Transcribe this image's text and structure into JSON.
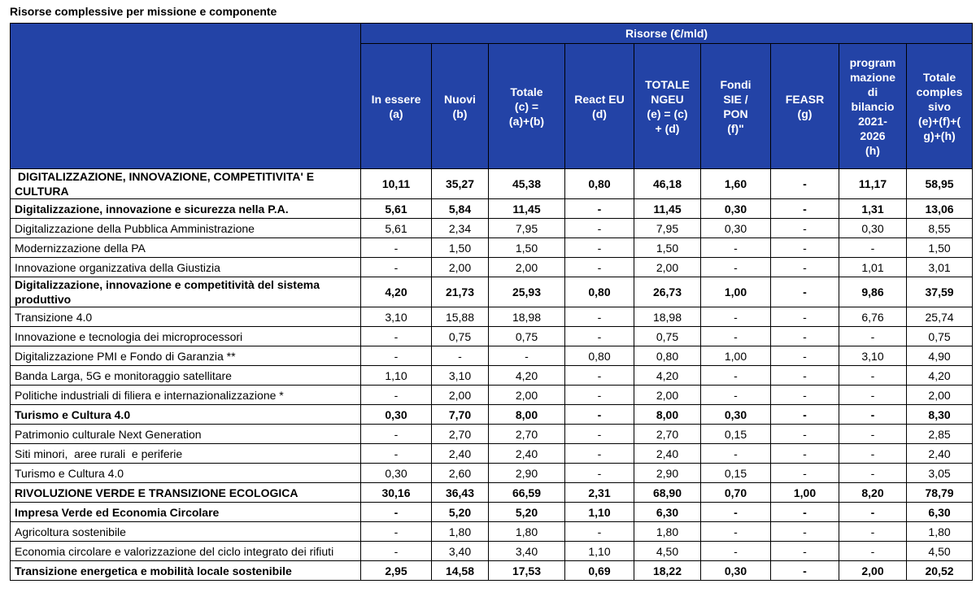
{
  "title": "Risorse complessive per missione e componente",
  "table": {
    "group_header": "Risorse (€/mld)",
    "columns": [
      [
        "In essere",
        "(a)"
      ],
      [
        "Nuovi",
        "(b)"
      ],
      [
        "Totale",
        "(c) =",
        "(a)+(b)"
      ],
      [
        "React EU",
        "(d)"
      ],
      [
        "TOTALE",
        "NGEU",
        "(e) = (c)",
        "+ (d)"
      ],
      [
        "Fondi",
        "SIE /",
        "PON",
        "(f)\""
      ],
      [
        "FEASR",
        "(g)"
      ],
      [
        "program",
        "mazione",
        "di",
        "bilancio",
        "2021-",
        "2026",
        "(h)"
      ],
      [
        "Totale",
        "comples",
        "sivo",
        "(e)+(f)+(",
        "g)+(h)"
      ]
    ],
    "rows": [
      {
        "label": " DIGITALIZZAZIONE, INNOVAZIONE, COMPETITIVITA' E CULTURA",
        "bold": true,
        "values": [
          "10,11",
          "35,27",
          "45,38",
          "0,80",
          "46,18",
          "1,60",
          "-",
          "11,17",
          "58,95"
        ]
      },
      {
        "label": "Digitalizzazione, innovazione e sicurezza nella P.A.",
        "bold": true,
        "values": [
          "5,61",
          "5,84",
          "11,45",
          "-",
          "11,45",
          "0,30",
          "-",
          "1,31",
          "13,06"
        ]
      },
      {
        "label": "Digitalizzazione della Pubblica Amministrazione",
        "bold": false,
        "values": [
          "5,61",
          "2,34",
          "7,95",
          "-",
          "7,95",
          "0,30",
          "-",
          "0,30",
          "8,55"
        ]
      },
      {
        "label": "Modernizzazione della PA",
        "bold": false,
        "values": [
          "-",
          "1,50",
          "1,50",
          "-",
          "1,50",
          "-",
          "-",
          "-",
          "1,50"
        ]
      },
      {
        "label": "Innovazione organizzativa della Giustizia",
        "bold": false,
        "values": [
          "-",
          "2,00",
          "2,00",
          "-",
          "2,00",
          "-",
          "-",
          "1,01",
          "3,01"
        ]
      },
      {
        "label": "Digitalizzazione, innovazione e competitività del sistema produttivo",
        "bold": true,
        "values": [
          "4,20",
          "21,73",
          "25,93",
          "0,80",
          "26,73",
          "1,00",
          "-",
          "9,86",
          "37,59"
        ]
      },
      {
        "label": "Transizione 4.0",
        "bold": false,
        "values": [
          "3,10",
          "15,88",
          "18,98",
          "-",
          "18,98",
          "-",
          "-",
          "6,76",
          "25,74"
        ]
      },
      {
        "label": "Innovazione e tecnologia dei microprocessori",
        "bold": false,
        "values": [
          "-",
          "0,75",
          "0,75",
          "-",
          "0,75",
          "-",
          "-",
          "-",
          "0,75"
        ]
      },
      {
        "label": "Digitalizzazione PMI e Fondo di Garanzia **",
        "bold": false,
        "values": [
          "-",
          "-",
          "-",
          "0,80",
          "0,80",
          "1,00",
          "-",
          "3,10",
          "4,90"
        ]
      },
      {
        "label": "Banda Larga, 5G e monitoraggio satellitare",
        "bold": false,
        "values": [
          "1,10",
          "3,10",
          "4,20",
          "-",
          "4,20",
          "-",
          "-",
          "-",
          "4,20"
        ]
      },
      {
        "label": "Politiche industriali di filiera e internazionalizzazione *",
        "bold": false,
        "values": [
          "-",
          "2,00",
          "2,00",
          "-",
          "2,00",
          "-",
          "-",
          "-",
          "2,00"
        ]
      },
      {
        "label": "Turismo e Cultura 4.0",
        "bold": true,
        "values": [
          "0,30",
          "7,70",
          "8,00",
          "-",
          "8,00",
          "0,30",
          "-",
          "-",
          "8,30"
        ]
      },
      {
        "label": "Patrimonio culturale Next Generation",
        "bold": false,
        "values": [
          "-",
          "2,70",
          "2,70",
          "-",
          "2,70",
          "0,15",
          "-",
          "-",
          "2,85"
        ]
      },
      {
        "label": "Siti minori,  aree rurali  e periferie",
        "bold": false,
        "values": [
          "-",
          "2,40",
          "2,40",
          "-",
          "2,40",
          "-",
          "-",
          "-",
          "2,40"
        ]
      },
      {
        "label": "Turismo e Cultura 4.0",
        "bold": false,
        "values": [
          "0,30",
          "2,60",
          "2,90",
          "-",
          "2,90",
          "0,15",
          "-",
          "-",
          "3,05"
        ]
      },
      {
        "label": "RIVOLUZIONE VERDE E TRANSIZIONE ECOLOGICA",
        "bold": true,
        "values": [
          "30,16",
          "36,43",
          "66,59",
          "2,31",
          "68,90",
          "0,70",
          "1,00",
          "8,20",
          "78,79"
        ]
      },
      {
        "label": "Impresa Verde ed Economia Circolare",
        "bold": true,
        "values": [
          "-",
          "5,20",
          "5,20",
          "1,10",
          "6,30",
          "-",
          "-",
          "-",
          "6,30"
        ]
      },
      {
        "label": "Agricoltura sostenibile",
        "bold": false,
        "values": [
          "-",
          "1,80",
          "1,80",
          "-",
          "1,80",
          "-",
          "-",
          "-",
          "1,80"
        ]
      },
      {
        "label": "Economia circolare e valorizzazione del ciclo integrato dei rifiuti",
        "bold": false,
        "values": [
          "-",
          "3,40",
          "3,40",
          "1,10",
          "4,50",
          "-",
          "-",
          "-",
          "4,50"
        ]
      },
      {
        "label": "Transizione energetica e mobilità locale sostenibile",
        "bold": true,
        "values": [
          "2,95",
          "14,58",
          "17,53",
          "0,69",
          "18,22",
          "0,30",
          "-",
          "2,00",
          "20,52"
        ]
      }
    ]
  }
}
